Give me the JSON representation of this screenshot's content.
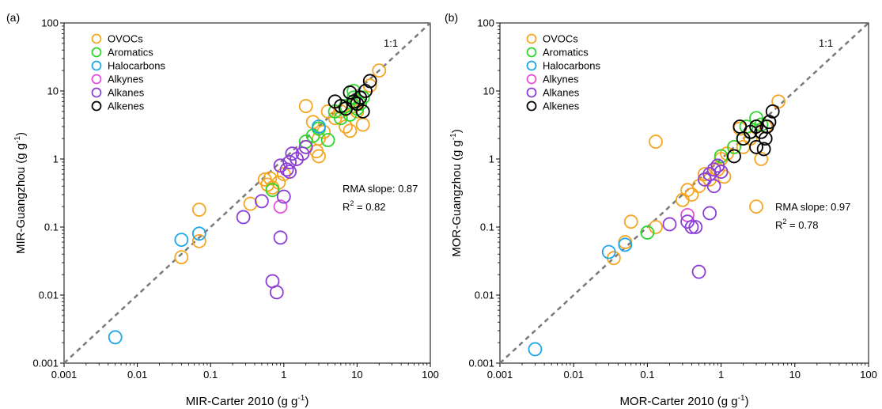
{
  "chart_data": [
    {
      "type": "scatter",
      "panel_label": "(a)",
      "xlabel": "MIR-Carter 2010 (g g",
      "xlabel_sup": "-1",
      "xlabel_end": ")",
      "ylabel": "MIR-Guangzhou  (g g",
      "ylabel_sup": "-1",
      "ylabel_end": ")",
      "x_scale": "log",
      "y_scale": "log",
      "xlim": [
        0.001,
        100
      ],
      "ylim": [
        0.001,
        100
      ],
      "x_ticks": [
        "0.001",
        "0.01",
        "0.1",
        "1",
        "10",
        "100"
      ],
      "y_ticks": [
        "0.001",
        "0.01",
        "0.1",
        "1",
        "10",
        "100"
      ],
      "reference_line": {
        "label": "1:1"
      },
      "annotation": {
        "slope_text": "RMA slope: 0.87",
        "r2_prefix": "R",
        "r2_sup": "2",
        "r2_text": " = 0.82"
      },
      "legend_position": "top-left",
      "series": [
        {
          "name": "OVOCs",
          "color": "#F5A623",
          "points": [
            [
              0.04,
              0.036
            ],
            [
              0.07,
              0.062
            ],
            [
              0.07,
              0.18
            ],
            [
              0.35,
              0.22
            ],
            [
              0.55,
              0.5
            ],
            [
              0.6,
              0.42
            ],
            [
              0.65,
              0.52
            ],
            [
              0.7,
              0.38
            ],
            [
              0.85,
              0.45
            ],
            [
              1.0,
              0.6
            ],
            [
              2.0,
              6.0
            ],
            [
              2.5,
              3.5
            ],
            [
              2.8,
              1.3
            ],
            [
              3.0,
              1.1
            ],
            [
              3.5,
              2.5
            ],
            [
              4.0,
              5.0
            ],
            [
              5.0,
              4.0
            ],
            [
              6.0,
              5.0
            ],
            [
              7.0,
              3.0
            ],
            [
              8.0,
              2.6
            ],
            [
              9.0,
              6.0
            ],
            [
              10.0,
              5.0
            ],
            [
              12.0,
              3.2
            ],
            [
              15.0,
              12.0
            ],
            [
              20.0,
              20.0
            ],
            [
              1.5,
              1.0
            ],
            [
              2.0,
              1.5
            ],
            [
              3.0,
              2.0
            ]
          ]
        },
        {
          "name": "Aromatics",
          "color": "#2ED62E",
          "points": [
            [
              0.7,
              0.35
            ],
            [
              2.0,
              1.8
            ],
            [
              2.5,
              2.2
            ],
            [
              3.0,
              2.8
            ],
            [
              4.0,
              1.9
            ],
            [
              5.0,
              5.0
            ],
            [
              6.0,
              4.0
            ],
            [
              7.0,
              6.0
            ],
            [
              8.0,
              4.5
            ],
            [
              9.0,
              8.0
            ],
            [
              10.0,
              5.5
            ],
            [
              11.0,
              6.5
            ],
            [
              12.0,
              8.0
            ],
            [
              9.0,
              10.0
            ]
          ]
        },
        {
          "name": "Halocarbons",
          "color": "#1EA7E8",
          "points": [
            [
              0.005,
              0.0024
            ],
            [
              0.04,
              0.065
            ],
            [
              0.07,
              0.08
            ],
            [
              3.0,
              3.0
            ]
          ]
        },
        {
          "name": "Alkynes",
          "color": "#E84FD8",
          "points": [
            [
              0.9,
              0.2
            ]
          ]
        },
        {
          "name": "Alkanes",
          "color": "#8B3FD6",
          "points": [
            [
              0.28,
              0.14
            ],
            [
              0.5,
              0.24
            ],
            [
              0.7,
              0.016
            ],
            [
              0.8,
              0.011
            ],
            [
              0.9,
              0.07
            ],
            [
              1.0,
              0.28
            ],
            [
              0.9,
              0.8
            ],
            [
              1.1,
              0.7
            ],
            [
              1.2,
              0.9
            ],
            [
              1.3,
              1.2
            ],
            [
              1.5,
              1.0
            ],
            [
              1.8,
              1.2
            ],
            [
              2.0,
              1.5
            ],
            [
              1.2,
              0.65
            ]
          ]
        },
        {
          "name": "Alkenes",
          "color": "#000000",
          "points": [
            [
              5.0,
              7.0
            ],
            [
              6.0,
              6.0
            ],
            [
              7.0,
              5.5
            ],
            [
              8.0,
              9.5
            ],
            [
              9.0,
              7.0
            ],
            [
              10.0,
              6.5
            ],
            [
              12.0,
              5.0
            ],
            [
              13.0,
              10.0
            ],
            [
              15.0,
              14.0
            ],
            [
              11.0,
              8.0
            ]
          ]
        }
      ]
    },
    {
      "type": "scatter",
      "panel_label": "(b)",
      "xlabel": "MOR-Carter 2010 (g g",
      "xlabel_sup": "-1",
      "xlabel_end": ")",
      "ylabel": "MOR-Guangzhou  (g g",
      "ylabel_sup": "-1",
      "ylabel_end": ")",
      "x_scale": "log",
      "y_scale": "log",
      "xlim": [
        0.001,
        100
      ],
      "ylim": [
        0.001,
        100
      ],
      "x_ticks": [
        "0.001",
        "0.01",
        "0.1",
        "1",
        "10",
        "100"
      ],
      "y_ticks": [
        "0.001",
        "0.01",
        "0.1",
        "1",
        "10",
        "100"
      ],
      "reference_line": {
        "label": "1:1"
      },
      "annotation": {
        "slope_text": "RMA slope: 0.97",
        "r2_prefix": "R",
        "r2_sup": "2",
        "r2_text": " = 0.78"
      },
      "legend_position": "top-left",
      "series": [
        {
          "name": "OVOCs",
          "color": "#F5A623",
          "points": [
            [
              0.035,
              0.035
            ],
            [
              0.05,
              0.06
            ],
            [
              0.06,
              0.12
            ],
            [
              0.13,
              0.1
            ],
            [
              0.13,
              1.8
            ],
            [
              0.3,
              0.25
            ],
            [
              0.35,
              0.35
            ],
            [
              0.4,
              0.3
            ],
            [
              0.5,
              0.4
            ],
            [
              0.6,
              0.6
            ],
            [
              0.7,
              0.5
            ],
            [
              1.0,
              1.0
            ],
            [
              1.2,
              1.2
            ],
            [
              1.5,
              1.5
            ],
            [
              1.8,
              2.8
            ],
            [
              2.0,
              1.5
            ],
            [
              2.5,
              2.0
            ],
            [
              3.0,
              0.2
            ],
            [
              3.5,
              1.0
            ],
            [
              4.0,
              3.0
            ],
            [
              6.0,
              7.0
            ],
            [
              1.1,
              0.55
            ],
            [
              0.9,
              0.7
            ]
          ]
        },
        {
          "name": "Aromatics",
          "color": "#2ED62E",
          "points": [
            [
              0.1,
              0.083
            ],
            [
              1.0,
              1.1
            ],
            [
              1.5,
              1.5
            ],
            [
              2.0,
              2.0
            ],
            [
              2.5,
              2.5
            ],
            [
              3.0,
              4.0
            ],
            [
              3.5,
              3.2
            ],
            [
              2.2,
              3.0
            ]
          ]
        },
        {
          "name": "Halocarbons",
          "color": "#1EA7E8",
          "points": [
            [
              0.003,
              0.0016
            ],
            [
              0.03,
              0.043
            ],
            [
              0.05,
              0.055
            ]
          ]
        },
        {
          "name": "Alkynes",
          "color": "#E84FD8",
          "points": [
            [
              0.35,
              0.15
            ]
          ]
        },
        {
          "name": "Alkanes",
          "color": "#8B3FD6",
          "points": [
            [
              0.2,
              0.11
            ],
            [
              0.35,
              0.12
            ],
            [
              0.4,
              0.1
            ],
            [
              0.45,
              0.1
            ],
            [
              0.5,
              0.022
            ],
            [
              0.6,
              0.5
            ],
            [
              0.7,
              0.16
            ],
            [
              0.7,
              0.6
            ],
            [
              0.8,
              0.7
            ],
            [
              0.8,
              0.4
            ],
            [
              0.9,
              0.8
            ],
            [
              1.0,
              0.65
            ]
          ]
        },
        {
          "name": "Alkenes",
          "color": "#000000",
          "points": [
            [
              1.5,
              1.1
            ],
            [
              1.8,
              3.0
            ],
            [
              2.0,
              2.0
            ],
            [
              2.5,
              2.5
            ],
            [
              3.0,
              3.0
            ],
            [
              3.5,
              2.5
            ],
            [
              4.0,
              2.0
            ],
            [
              4.5,
              3.5
            ],
            [
              5.0,
              5.0
            ],
            [
              3.0,
              1.5
            ],
            [
              3.8,
              1.4
            ],
            [
              4.2,
              3.0
            ]
          ]
        }
      ]
    }
  ]
}
